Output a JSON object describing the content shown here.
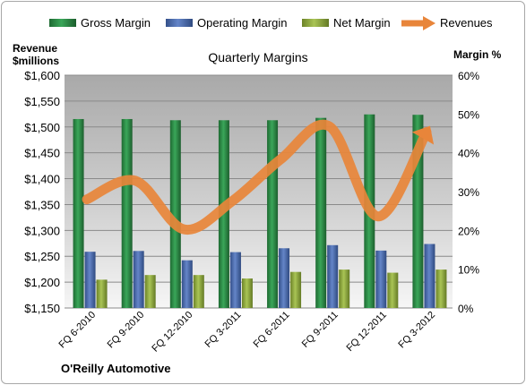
{
  "chart_data": {
    "type": "bar+line",
    "title": "Quarterly Margins",
    "company": "O'Reilly Automotive",
    "left_axis_label": [
      "Revenue",
      "$millions"
    ],
    "right_axis_label": "Margin %",
    "left_ylim": [
      1150,
      1600
    ],
    "left_ticks": [
      "$1,150",
      "$1,200",
      "$1,250",
      "$1,300",
      "$1,350",
      "$1,400",
      "$1,450",
      "$1,500",
      "$1,550",
      "$1,600"
    ],
    "right_ylim": [
      0,
      60
    ],
    "right_ticks": [
      "0%",
      "10%",
      "20%",
      "30%",
      "40%",
      "50%",
      "60%"
    ],
    "categories": [
      "FQ 6-2010",
      "FQ 9-2010",
      "FQ 12-2010",
      "FQ 3-2011",
      "FQ 6-2011",
      "FQ 9-2011",
      "FQ 12-2011",
      "FQ 3-2012"
    ],
    "series": [
      {
        "name": "Gross Margin",
        "axis": "right",
        "kind": "bar",
        "color": "#2e8b45",
        "values": [
          48.7,
          48.7,
          48.4,
          48.4,
          48.4,
          49.0,
          49.9,
          49.8
        ]
      },
      {
        "name": "Operating Margin",
        "axis": "right",
        "kind": "bar",
        "color": "#4a6cb0",
        "values": [
          14.5,
          14.7,
          12.3,
          14.4,
          15.4,
          16.2,
          14.8,
          16.5
        ]
      },
      {
        "name": "Net Margin",
        "axis": "right",
        "kind": "bar",
        "color": "#8faa3c",
        "values": [
          7.3,
          8.5,
          8.5,
          7.6,
          9.3,
          9.9,
          9.1,
          9.9
        ]
      },
      {
        "name": "Revenues",
        "axis": "left",
        "kind": "line",
        "color": "#e8853a",
        "values": [
          1360,
          1396,
          1302,
          1357,
          1438,
          1501,
          1327,
          1490
        ]
      }
    ],
    "legend_position": "top",
    "grid": true
  }
}
